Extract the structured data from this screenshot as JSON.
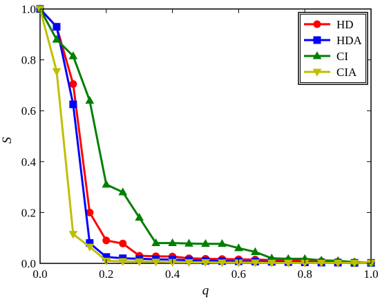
{
  "chart_data": {
    "type": "line",
    "xlabel": "q",
    "ylabel": "S",
    "xlim": [
      0.0,
      1.0
    ],
    "ylim": [
      0.0,
      1.0
    ],
    "xticks": [
      "0.0",
      "0.2",
      "0.4",
      "0.6",
      "0.8",
      "1.0"
    ],
    "yticks": [
      "0.0",
      "0.2",
      "0.4",
      "0.6",
      "0.8",
      "1.0"
    ],
    "grid": false,
    "legend_position": "top-right",
    "series": [
      {
        "name": "HD",
        "color": "#ff0000",
        "marker": "circle",
        "x": [
          0.0,
          0.05,
          0.1,
          0.15,
          0.2,
          0.25,
          0.3,
          0.35,
          0.4,
          0.45,
          0.5,
          0.55,
          0.6,
          0.65,
          0.7,
          0.75,
          0.8,
          0.85,
          0.9,
          0.95,
          1.0
        ],
        "y": [
          1.0,
          0.93,
          0.705,
          0.2,
          0.09,
          0.078,
          0.03,
          0.028,
          0.027,
          0.02,
          0.018,
          0.017,
          0.016,
          0.015,
          0.013,
          0.012,
          0.01,
          0.008,
          0.006,
          0.004,
          0.002
        ]
      },
      {
        "name": "HDA",
        "color": "#0000ff",
        "marker": "square",
        "x": [
          0.0,
          0.05,
          0.1,
          0.15,
          0.2,
          0.25,
          0.3,
          0.35,
          0.4,
          0.45,
          0.5,
          0.55,
          0.6,
          0.65,
          0.7,
          0.75,
          0.8,
          0.85,
          0.9,
          0.95,
          1.0
        ],
        "y": [
          1.0,
          0.93,
          0.625,
          0.08,
          0.025,
          0.02,
          0.018,
          0.016,
          0.015,
          0.012,
          0.01,
          0.009,
          0.008,
          0.007,
          0.006,
          0.005,
          0.004,
          0.003,
          0.003,
          0.002,
          0.002
        ]
      },
      {
        "name": "CI",
        "color": "#007f00",
        "marker": "triangle-up",
        "x": [
          0.0,
          0.05,
          0.1,
          0.15,
          0.2,
          0.25,
          0.3,
          0.35,
          0.4,
          0.45,
          0.5,
          0.55,
          0.6,
          0.65,
          0.7,
          0.75,
          0.8,
          0.85,
          0.9,
          0.95,
          1.0
        ],
        "y": [
          1.0,
          0.88,
          0.815,
          0.64,
          0.31,
          0.28,
          0.18,
          0.08,
          0.08,
          0.078,
          0.077,
          0.077,
          0.06,
          0.045,
          0.02,
          0.018,
          0.018,
          0.012,
          0.01,
          0.005,
          0.002
        ]
      },
      {
        "name": "CIA",
        "color": "#bfbf00",
        "marker": "triangle-down",
        "x": [
          0.0,
          0.05,
          0.1,
          0.15,
          0.2,
          0.25,
          0.3,
          0.35,
          0.4,
          0.45,
          0.5,
          0.55,
          0.6,
          0.65,
          0.7,
          0.75,
          0.8,
          0.85,
          0.9,
          0.95,
          1.0
        ],
        "y": [
          1.0,
          0.755,
          0.115,
          0.065,
          0.01,
          0.008,
          0.007,
          0.006,
          0.005,
          0.004,
          0.004,
          0.003,
          0.003,
          0.003,
          0.002,
          0.002,
          0.002,
          0.002,
          0.002,
          0.002,
          0.002
        ]
      }
    ]
  }
}
